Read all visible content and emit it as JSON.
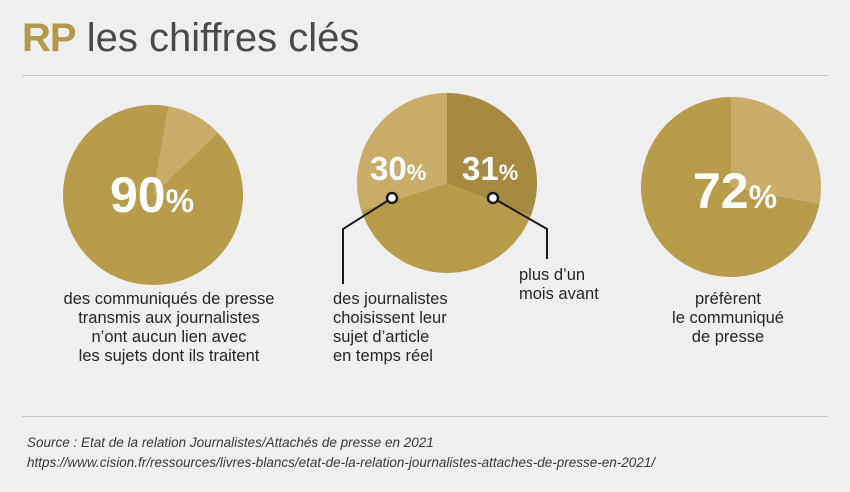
{
  "title": {
    "brand": "RP",
    "rest": "les chiffres clés"
  },
  "colors": {
    "gold": "#b79c4c",
    "gold_light": "#c7ad67",
    "gold_dark": "#a68a40",
    "pointer": "#1a1a1a"
  },
  "chart_data": [
    {
      "type": "pie",
      "slices": [
        {
          "label": "90%",
          "value": 90
        },
        {
          "label": "",
          "value": 10
        }
      ],
      "value_label": {
        "number": "90",
        "unit": "%"
      },
      "caption": [
        "des communiqués de presse",
        "transmis aux journalistes",
        "n’ont aucun lien avec",
        "les sujets dont ils traitent"
      ]
    },
    {
      "type": "pie",
      "slices": [
        {
          "label": "31%",
          "value": 31
        },
        {
          "label": "",
          "value": 39
        },
        {
          "label": "30%",
          "value": 30
        }
      ],
      "value_labels": [
        {
          "number": "30",
          "unit": "%",
          "caption": [
            "des journalistes",
            "choisissent leur",
            "sujet d’article",
            "en temps réel"
          ]
        },
        {
          "number": "31",
          "unit": "%",
          "caption": [
            "plus d’un",
            "mois avant"
          ]
        }
      ]
    },
    {
      "type": "pie",
      "slices": [
        {
          "label": "",
          "value": 28
        },
        {
          "label": "72%",
          "value": 72
        }
      ],
      "value_label": {
        "number": "72",
        "unit": "%"
      },
      "caption": [
        "préfèrent",
        "le communiqué",
        "de presse"
      ]
    }
  ],
  "source": {
    "line1": "Source : Etat de la relation Journalistes/Attachés de presse en 2021",
    "line2": "https://www.cision.fr/ressources/livres-blancs/etat-de-la-relation-journalistes-attaches-de-presse-en-2021/"
  }
}
